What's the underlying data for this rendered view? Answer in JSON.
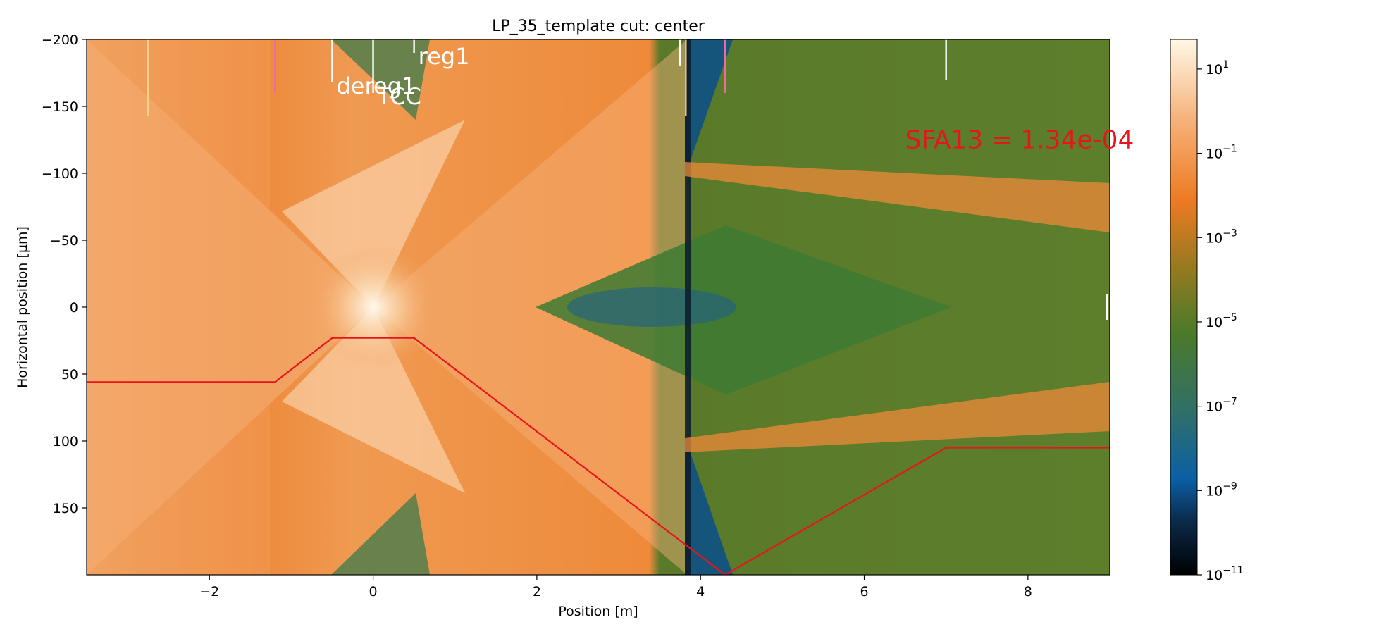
{
  "chart_data": {
    "type": "heatmap",
    "title": "LP_35_template cut: center",
    "xlabel": "Position [m]",
    "ylabel": "Horizontal position [μm]",
    "xlim": [
      -3.5,
      9.0
    ],
    "ylim": [
      -200,
      200
    ],
    "y_inverted": true,
    "x_ticks": [
      -2,
      0,
      2,
      4,
      6,
      8
    ],
    "y_ticks": [
      -200,
      -150,
      -100,
      -50,
      0,
      50,
      100,
      150
    ],
    "colorbar": {
      "scale": "log",
      "min_exp": -11,
      "max_exp": 1.7,
      "tick_exponents": [
        1,
        -1,
        -3,
        -5,
        -7,
        -9,
        -11
      ],
      "colormap": [
        "#000000",
        "#0b2a4a",
        "#0b5fa5",
        "#2f6f6a",
        "#4a7a2a",
        "#9a7a20",
        "#ee7a22",
        "#f6b27a",
        "#fff8e6"
      ]
    },
    "annotation": {
      "text": "SFA13 = 1.34e-04",
      "x": 6.5,
      "y": -125,
      "color": "#e8141c"
    },
    "element_markers": [
      {
        "x": -2.75,
        "y_from": -200,
        "y_to": -143,
        "color": "#f6d28a",
        "label": ""
      },
      {
        "x": -1.2,
        "y_from": -200,
        "y_to": -160,
        "color": "#f06aa0",
        "label": ""
      },
      {
        "x": -0.5,
        "y_from": -200,
        "y_to": -168,
        "color": "#ffffff",
        "label": "dereg1"
      },
      {
        "x": 0.0,
        "y_from": -200,
        "y_to": -160,
        "color": "#ffffff",
        "label": "TCC"
      },
      {
        "x": 0.5,
        "y_from": -200,
        "y_to": -190,
        "color": "#ffffff",
        "label": "reg1"
      },
      {
        "x": 3.75,
        "y_from": -200,
        "y_to": -180,
        "color": "#ffffff",
        "label": ""
      },
      {
        "x": 3.82,
        "y_from": -200,
        "y_to": -143,
        "color": "#f6d28a",
        "label": ""
      },
      {
        "x": 4.3,
        "y_from": -200,
        "y_to": -160,
        "color": "#f06aa0",
        "label": ""
      },
      {
        "x": 7.0,
        "y_from": -200,
        "y_to": -170,
        "color": "#ffffff",
        "label": ""
      }
    ],
    "series": [
      {
        "color": "#e8141c",
        "x": [
          -3.5,
          -1.2,
          -0.5,
          0.5,
          4.3,
          7.0,
          9.0
        ],
        "y": [
          56,
          56,
          23,
          23,
          200,
          105,
          105
        ]
      }
    ]
  }
}
